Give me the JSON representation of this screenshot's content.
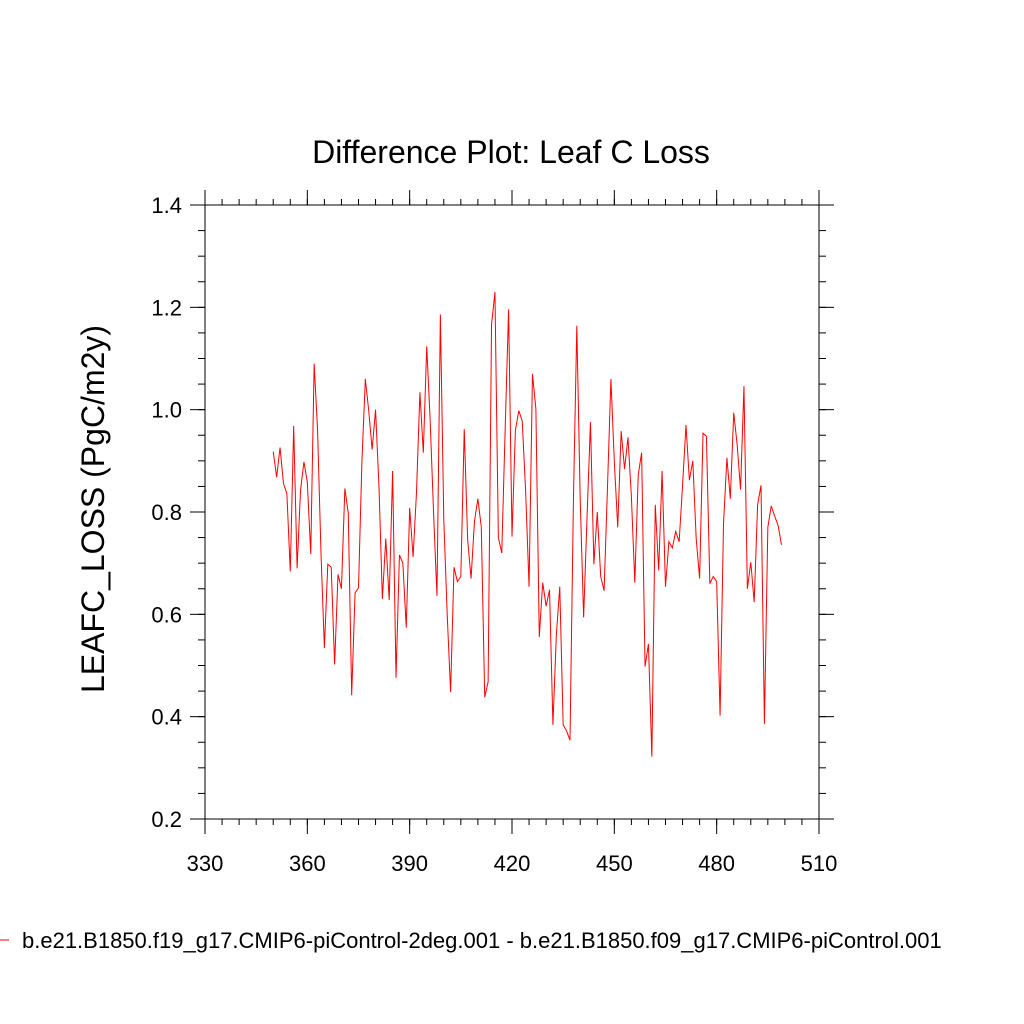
{
  "chart_data": {
    "type": "line",
    "title": "Difference Plot: Leaf C Loss",
    "xlabel": "",
    "ylabel": "LEAFC_LOSS  (PgC/m2y)",
    "xlim": [
      330,
      510
    ],
    "ylim": [
      0.2,
      1.4
    ],
    "xticks": [
      330,
      360,
      390,
      420,
      450,
      480,
      510
    ],
    "yticks": [
      0.2,
      0.4,
      0.6,
      0.8,
      1.0,
      1.2,
      1.4
    ],
    "xtick_labels": [
      "330",
      "360",
      "390",
      "420",
      "450",
      "480",
      "510"
    ],
    "ytick_labels": [
      "0.2",
      "0.4",
      "0.6",
      "0.8",
      "1.0",
      "1.2",
      "1.4"
    ],
    "grid": false,
    "legend_position": "bottom",
    "series": [
      {
        "name": "b.e21.B1850.f19_g17.CMIP6-piControl-2deg.001 - b.e21.B1850.f09_g17.CMIP6-piControl.001",
        "color": "#ff0000",
        "x": [
          350,
          351,
          352,
          353,
          354,
          355,
          356,
          357,
          358,
          359,
          360,
          361,
          362,
          363,
          364,
          365,
          366,
          367,
          368,
          369,
          370,
          371,
          372,
          373,
          374,
          375,
          376,
          377,
          378,
          379,
          380,
          381,
          382,
          383,
          384,
          385,
          386,
          387,
          388,
          389,
          390,
          391,
          392,
          393,
          394,
          395,
          396,
          397,
          398,
          399,
          400,
          401,
          402,
          403,
          404,
          405,
          406,
          407,
          408,
          409,
          410,
          411,
          412,
          413,
          414,
          415,
          416,
          417,
          418,
          419,
          420,
          421,
          422,
          423,
          424,
          425,
          426,
          427,
          428,
          429,
          430,
          431,
          432,
          433,
          434,
          435,
          436,
          437,
          438,
          439,
          440,
          441,
          442,
          443,
          444,
          445,
          446,
          447,
          448,
          449,
          450,
          451,
          452,
          453,
          454,
          455,
          456,
          457,
          458,
          459,
          460,
          461,
          462,
          463,
          464,
          465,
          466,
          467,
          468,
          469,
          470,
          471,
          472,
          473,
          474,
          475,
          476,
          477,
          478,
          479,
          480,
          481,
          482,
          483,
          484,
          485,
          486,
          487,
          488,
          489,
          490,
          491,
          492,
          493,
          494,
          495,
          496,
          497,
          498,
          499
        ],
        "y": [
          0.918,
          0.868,
          0.926,
          0.856,
          0.836,
          0.684,
          0.968,
          0.69,
          0.842,
          0.898,
          0.858,
          0.718,
          1.09,
          0.96,
          0.72,
          0.534,
          0.698,
          0.692,
          0.502,
          0.678,
          0.65,
          0.846,
          0.798,
          0.442,
          0.642,
          0.652,
          0.898,
          1.06,
          0.998,
          0.922,
          1.0,
          0.85,
          0.63,
          0.748,
          0.628,
          0.88,
          0.476,
          0.716,
          0.7,
          0.574,
          0.808,
          0.712,
          0.838,
          1.034,
          0.916,
          1.124,
          0.98,
          0.8,
          0.636,
          1.186,
          0.786,
          0.6,
          0.448,
          0.692,
          0.664,
          0.674,
          0.962,
          0.746,
          0.67,
          0.782,
          0.826,
          0.77,
          0.438,
          0.468,
          1.166,
          1.23,
          0.75,
          0.72,
          0.964,
          1.196,
          0.752,
          0.96,
          0.998,
          0.978,
          0.84,
          0.654,
          1.07,
          1.002,
          0.556,
          0.662,
          0.616,
          0.648,
          0.384,
          0.56,
          0.654,
          0.384,
          0.372,
          0.354,
          0.82,
          1.164,
          0.824,
          0.594,
          0.79,
          0.976,
          0.698,
          0.8,
          0.674,
          0.646,
          0.85,
          1.06,
          0.898,
          0.77,
          0.958,
          0.884,
          0.946,
          0.83,
          0.662,
          0.872,
          0.916,
          0.498,
          0.542,
          0.322,
          0.814,
          0.686,
          0.88,
          0.654,
          0.742,
          0.73,
          0.762,
          0.742,
          0.852,
          0.97,
          0.862,
          0.9,
          0.748,
          0.67,
          0.954,
          0.948,
          0.66,
          0.674,
          0.664,
          0.402,
          0.776,
          0.906,
          0.826,
          0.994,
          0.932,
          0.844,
          1.046,
          0.65,
          0.702,
          0.624,
          0.814,
          0.852,
          0.386,
          0.77,
          0.812,
          0.792,
          0.774,
          0.736
        ]
      }
    ]
  }
}
